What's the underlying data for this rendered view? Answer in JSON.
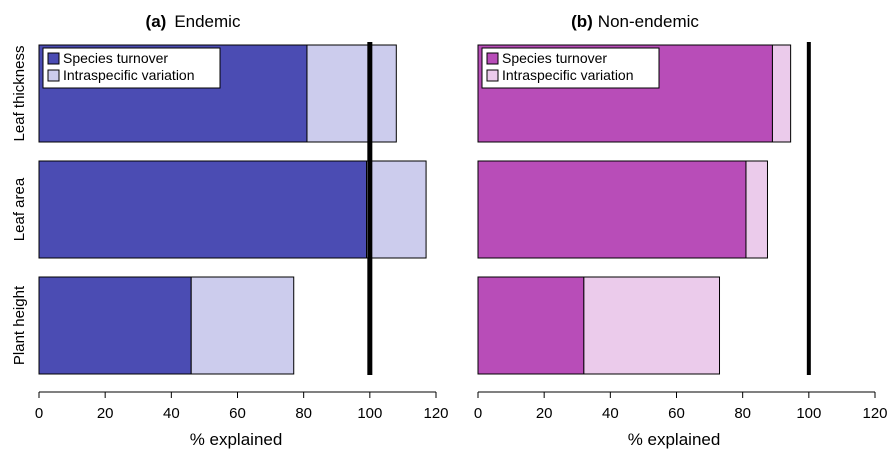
{
  "chart_data": [
    {
      "type": "bar",
      "orientation": "horizontal",
      "stacked": true,
      "panel_letter": "(a)",
      "title": "Endemic",
      "xlabel": "% explained",
      "ylabel": "",
      "xlim": [
        0,
        120
      ],
      "xticks": [
        0,
        20,
        40,
        60,
        80,
        100,
        120
      ],
      "categories": [
        "Leaf thickness",
        "Leaf area",
        "Plant height"
      ],
      "series": [
        {
          "name": "Species turnover",
          "color": "#4b4cb3",
          "values": [
            81,
            99,
            46
          ]
        },
        {
          "name": "Intraspecific variation",
          "color": "#cccced",
          "values": [
            27,
            18,
            31
          ]
        }
      ],
      "reference_line": 100,
      "legend": "top-left"
    },
    {
      "type": "bar",
      "orientation": "horizontal",
      "stacked": true,
      "panel_letter": "(b)",
      "title": "Non-endemic",
      "xlabel": "% explained",
      "ylabel": "",
      "xlim": [
        0,
        120
      ],
      "xticks": [
        0,
        20,
        40,
        60,
        80,
        100,
        120
      ],
      "categories": [
        "Leaf thickness",
        "Leaf area",
        "Plant height"
      ],
      "series": [
        {
          "name": "Species turnover",
          "color": "#b84db8",
          "values": [
            89,
            81,
            32
          ]
        },
        {
          "name": "Intraspecific variation",
          "color": "#ebcbeb",
          "values": [
            5.5,
            6.5,
            41
          ]
        }
      ],
      "reference_line": 100,
      "legend": "top-left"
    }
  ]
}
